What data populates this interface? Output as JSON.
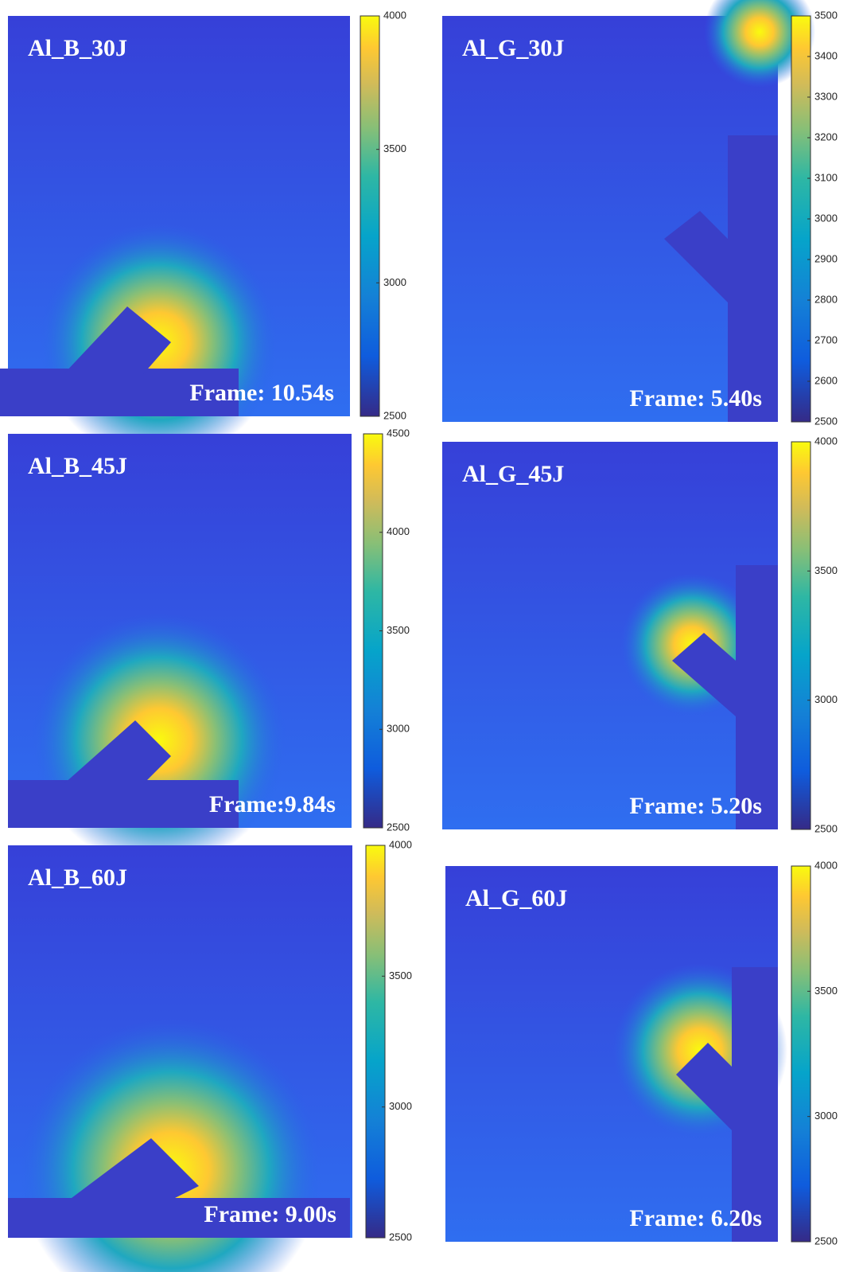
{
  "panels": [
    {
      "label": "Al_B_30J",
      "frame": "Frame: 10.54s",
      "colorbar": {
        "lim": [
          2500,
          4000
        ],
        "ticks": [
          2500,
          3000,
          3500,
          4000
        ]
      }
    },
    {
      "label": "Al_G_30J",
      "frame": "Frame: 5.40s",
      "colorbar": {
        "lim": [
          2500,
          3500
        ],
        "ticks": [
          2500,
          2600,
          2700,
          2800,
          2900,
          3000,
          3100,
          3200,
          3300,
          3400,
          3500
        ]
      }
    },
    {
      "label": "Al_B_45J",
      "frame": "Frame:9.84s",
      "colorbar": {
        "lim": [
          2500,
          4500
        ],
        "ticks": [
          2500,
          3000,
          3500,
          4000,
          4500
        ]
      }
    },
    {
      "label": "Al_G_45J",
      "frame": "Frame: 5.20s",
      "colorbar": {
        "lim": [
          2500,
          4000
        ],
        "ticks": [
          2500,
          3000,
          3500,
          4000
        ]
      }
    },
    {
      "label": "Al_B_60J",
      "frame": "Frame: 9.00s",
      "colorbar": {
        "lim": [
          2500,
          4000
        ],
        "ticks": [
          2500,
          3000,
          3500,
          4000
        ]
      }
    },
    {
      "label": "Al_G_60J",
      "frame": "Frame: 6.20s",
      "colorbar": {
        "lim": [
          2500,
          4000
        ],
        "ticks": [
          2500,
          3000,
          3500,
          4000
        ]
      }
    }
  ]
}
